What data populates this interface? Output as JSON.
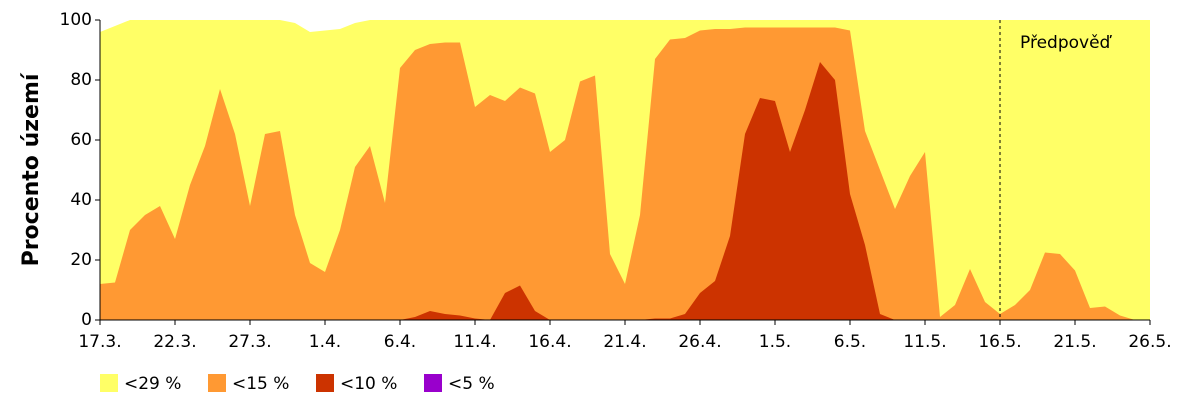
{
  "chart_data": {
    "type": "area",
    "ylabel": "Procento území",
    "categories": [
      "17.3.",
      null,
      null,
      null,
      null,
      "22.3.",
      null,
      null,
      null,
      null,
      "27.3.",
      null,
      null,
      null,
      null,
      "1.4.",
      null,
      null,
      null,
      null,
      "6.4.",
      null,
      null,
      null,
      null,
      "11.4.",
      null,
      null,
      null,
      null,
      "16.4.",
      null,
      null,
      null,
      null,
      "21.4.",
      null,
      null,
      null,
      null,
      "26.4.",
      null,
      null,
      null,
      null,
      "1.5.",
      null,
      null,
      null,
      null,
      "6.5.",
      null,
      null,
      null,
      null,
      "11.5.",
      null,
      null,
      null,
      null,
      "16.5.",
      null,
      null,
      null,
      null,
      "21.5.",
      null,
      null,
      null,
      null,
      "26.5."
    ],
    "series": [
      {
        "name": "<29 %",
        "color": "#ffff66",
        "values": [
          96,
          98,
          100,
          100,
          100,
          100,
          100,
          100,
          100,
          100,
          100,
          100,
          100,
          99,
          96,
          96.5,
          97,
          99,
          100,
          100,
          100,
          100,
          100,
          100,
          100,
          100,
          100,
          100,
          100,
          100,
          100,
          100,
          100,
          100,
          100,
          100,
          100,
          100,
          100,
          100,
          100,
          100,
          100,
          100,
          100,
          100,
          100,
          100,
          100,
          100,
          100,
          100,
          100,
          100,
          100,
          100,
          100,
          100,
          100,
          100,
          100,
          100,
          100,
          100,
          100,
          100,
          100,
          100,
          100,
          100,
          100
        ]
      },
      {
        "name": "<15 %",
        "color": "#ff9933",
        "values": [
          12,
          12.5,
          30,
          35,
          38,
          27,
          45,
          58,
          77,
          62,
          38,
          62,
          63,
          35,
          19,
          16,
          30,
          51,
          58,
          39,
          84,
          90,
          92,
          92.5,
          92.5,
          71,
          75,
          73,
          77.5,
          75.5,
          56,
          60,
          79.5,
          81.5,
          22,
          12,
          35,
          87,
          93.5,
          94,
          96.5,
          97,
          97,
          97.5,
          97.5,
          97.5,
          97.5,
          97.5,
          97.5,
          97.5,
          96.5,
          63,
          50,
          37,
          48,
          56,
          1,
          5,
          17,
          6,
          2,
          5,
          10,
          22.5,
          22,
          16.5,
          4,
          4.5,
          1.5,
          0,
          0
        ]
      },
      {
        "name": "<10 %",
        "color": "#cc3300",
        "values": [
          0,
          0,
          0,
          0,
          0,
          0,
          0,
          0,
          0,
          0,
          0,
          0,
          0,
          0,
          0,
          0,
          0,
          0,
          0,
          0,
          0,
          1,
          3,
          2,
          1.5,
          0.5,
          0,
          9,
          11.5,
          3,
          0,
          0,
          0,
          0,
          0,
          0,
          0,
          0.5,
          0.5,
          2,
          9,
          13,
          28,
          62,
          74,
          73,
          56,
          70,
          86,
          80,
          42,
          25,
          2,
          0,
          0,
          0,
          0,
          0,
          0,
          0,
          0,
          0,
          0,
          0,
          0,
          0,
          0,
          0,
          0,
          0,
          0
        ]
      },
      {
        "name": "<5 %",
        "color": "#9900cc",
        "values": [
          0,
          0,
          0,
          0,
          0,
          0,
          0,
          0,
          0,
          0,
          0,
          0,
          0,
          0,
          0,
          0,
          0,
          0,
          0,
          0,
          0,
          0,
          0,
          0,
          0,
          0,
          0,
          0,
          0,
          0,
          0,
          0,
          0,
          0,
          0,
          0,
          0,
          0,
          0,
          0,
          0,
          0,
          0,
          0,
          0,
          0,
          0,
          0,
          0,
          0,
          0,
          0,
          0,
          0,
          0,
          0,
          0,
          0,
          0,
          0,
          0,
          0,
          0,
          0,
          0,
          0,
          0,
          0,
          0,
          0,
          0
        ]
      }
    ],
    "ylim": [
      0,
      100
    ],
    "yticks": [
      0,
      20,
      40,
      60,
      80,
      100
    ],
    "annotation": {
      "text": "Předpověď",
      "x": "16.5."
    }
  }
}
